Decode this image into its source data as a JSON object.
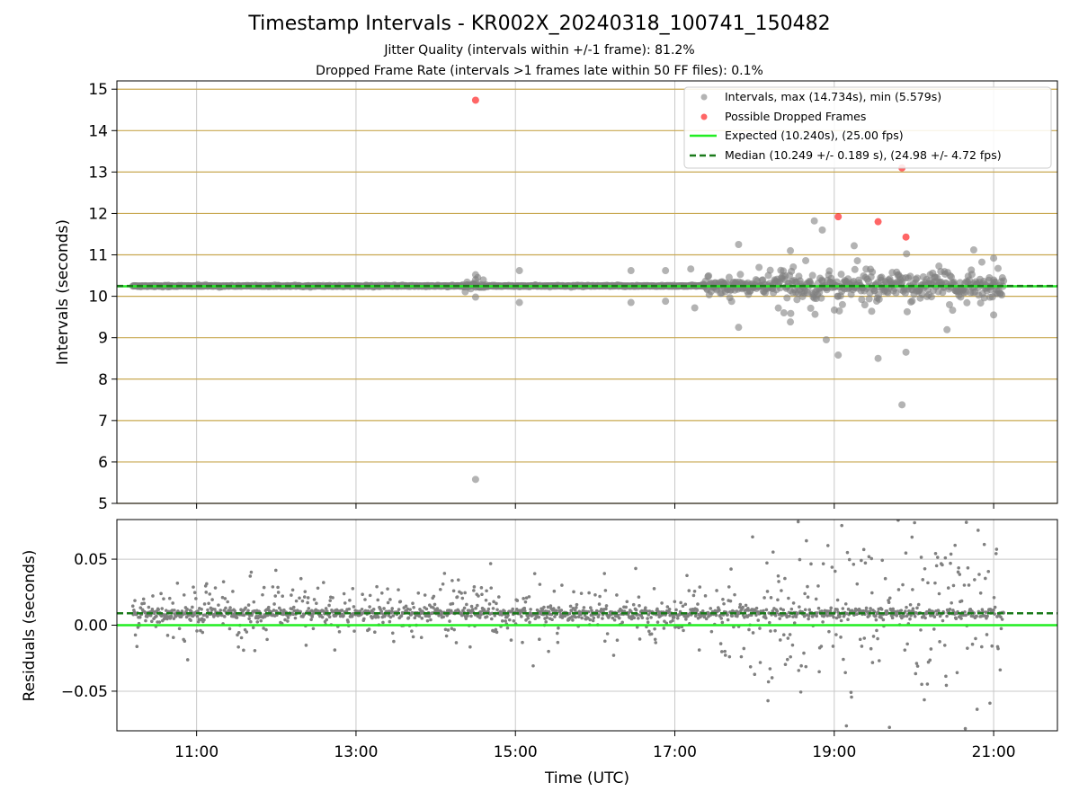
{
  "figure": {
    "title": "Timestamp Intervals - KR002X_20240318_100741_150482",
    "subtitle_1": "Jitter Quality (intervals within +/-1 frame): 81.2%",
    "subtitle_2": "Dropped Frame Rate (intervals >1 frames late within 50 FF files): 0.1%"
  },
  "colors": {
    "intervals": "#808080",
    "dropped": "#ff0000",
    "expected": "#22ee22",
    "median": "#1a7a1a",
    "gold_grid": "#c8a850",
    "grid": "#c8c8c8"
  },
  "chart_data": [
    {
      "type": "scatter",
      "panel": "intervals",
      "xlabel": "",
      "ylabel": "Intervals (seconds)",
      "xlim": [
        "10:00",
        "21:48"
      ],
      "ylim": [
        5,
        15.2
      ],
      "yticks": [
        5,
        6,
        7,
        8,
        9,
        10,
        11,
        12,
        13,
        14,
        15
      ],
      "xticks": [
        "11:00",
        "13:00",
        "15:00",
        "17:00",
        "19:00",
        "21:00"
      ],
      "grid": true,
      "legend_placement": "top-right",
      "expected_value": 10.24,
      "median_value": 10.249,
      "series": [
        {
          "name": "Intervals, max (14.734s), min (5.579s)",
          "note_points": [
            {
              "x": "14:30",
              "y": 10.52
            },
            {
              "x": "14:30",
              "y": 10.4
            },
            {
              "x": "14:30",
              "y": 9.98
            },
            {
              "x": "14:30",
              "y": 5.579
            },
            {
              "x": "15:03",
              "y": 10.62
            },
            {
              "x": "15:03",
              "y": 9.85
            },
            {
              "x": "16:27",
              "y": 10.62
            },
            {
              "x": "16:27",
              "y": 9.85
            },
            {
              "x": "16:53",
              "y": 10.62
            },
            {
              "x": "16:53",
              "y": 9.88
            },
            {
              "x": "17:12",
              "y": 10.66
            },
            {
              "x": "17:15",
              "y": 9.72
            },
            {
              "x": "17:48",
              "y": 11.25
            },
            {
              "x": "17:48",
              "y": 9.25
            },
            {
              "x": "18:27",
              "y": 11.1
            },
            {
              "x": "18:27",
              "y": 9.38
            },
            {
              "x": "18:45",
              "y": 11.82
            },
            {
              "x": "18:51",
              "y": 11.6
            },
            {
              "x": "18:54",
              "y": 8.95
            },
            {
              "x": "19:03",
              "y": 8.58
            },
            {
              "x": "19:15",
              "y": 11.22
            },
            {
              "x": "19:33",
              "y": 8.5
            },
            {
              "x": "19:51",
              "y": 7.38
            },
            {
              "x": "19:54",
              "y": 8.65
            },
            {
              "x": "20:45",
              "y": 11.12
            },
            {
              "x": "21:00",
              "y": 10.92
            },
            {
              "x": "21:00",
              "y": 9.55
            }
          ]
        },
        {
          "name": "Possible Dropped Frames",
          "points": [
            {
              "x": "14:30",
              "y": 14.734
            },
            {
              "x": "19:03",
              "y": 11.92
            },
            {
              "x": "19:33",
              "y": 11.8
            },
            {
              "x": "19:51",
              "y": 13.1
            },
            {
              "x": "19:54",
              "y": 11.43
            }
          ]
        },
        {
          "name": "Expected (10.240s), (25.00 fps)",
          "y": 10.24
        },
        {
          "name": "Median (10.249 +/- 0.189 s), (24.98 +/- 4.72 fps)",
          "y": 10.249
        }
      ]
    },
    {
      "type": "scatter",
      "panel": "residuals",
      "xlabel": "Time (UTC)",
      "ylabel": "Residuals (seconds)",
      "xlim": [
        "10:00",
        "21:48"
      ],
      "ylim": [
        -0.08,
        0.08
      ],
      "yticks": [
        0.05,
        0.0,
        -0.05
      ],
      "ytick_labels": [
        "0.05",
        "0.00",
        "−0.05"
      ],
      "xticks": [
        "11:00",
        "13:00",
        "15:00",
        "17:00",
        "19:00",
        "21:00"
      ],
      "grid": true,
      "expected_value": 0.0,
      "median_value": 0.009,
      "data_range": {
        "start": "10:12",
        "end": "21:08"
      }
    }
  ]
}
